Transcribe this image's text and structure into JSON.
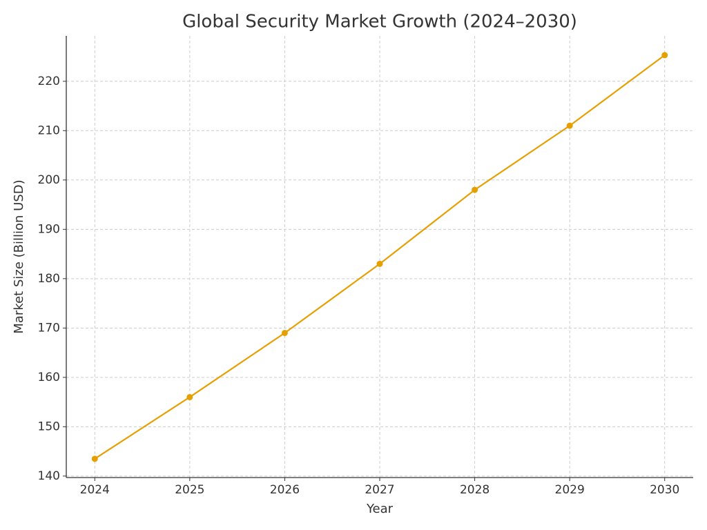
{
  "chart_data": {
    "type": "line",
    "title": "Global Security Market Growth (2024–2030)",
    "x_label": "Year",
    "y_label": "Market Size (Billion USD)",
    "x": [
      2024,
      2025,
      2026,
      2027,
      2028,
      2029,
      2030
    ],
    "series": [
      {
        "name": "Market Size",
        "color": "#e69f00",
        "values": [
          143.5,
          156,
          169,
          183,
          198,
          211,
          225.3
        ]
      }
    ],
    "xlim": [
      2023.7,
      2030.3
    ],
    "xticks": [
      2024,
      2025,
      2026,
      2027,
      2028,
      2029,
      2030
    ],
    "ylim": [
      139.7,
      229.2
    ],
    "yticks": [
      140,
      150,
      160,
      170,
      180,
      190,
      200,
      210,
      220
    ],
    "grid": true
  }
}
